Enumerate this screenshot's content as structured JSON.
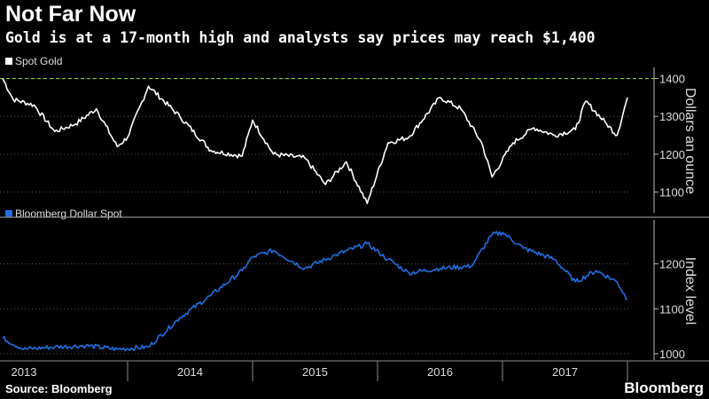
{
  "header": {
    "title": "Not Far Now",
    "subtitle": "Gold is at a 17-month high and analysts say prices may reach $1,400"
  },
  "footer": {
    "source": "Source: Bloomberg",
    "brand": "Bloomberg"
  },
  "colors": {
    "background": "#000000",
    "gold_line": "#ffffff",
    "dollar_line": "#1f6fe0",
    "reference_line": "#7fd13b",
    "grid": "#555555"
  },
  "chart_data": [
    {
      "type": "line",
      "series": [
        {
          "name": "Spot Gold",
          "x": [
            "2013-01",
            "2013-02",
            "2013-04",
            "2013-06",
            "2013-08",
            "2013-10",
            "2013-12",
            "2014-01",
            "2014-03",
            "2014-06",
            "2014-09",
            "2014-12",
            "2015-01",
            "2015-03",
            "2015-06",
            "2015-08",
            "2015-10",
            "2015-12",
            "2016-02",
            "2016-04",
            "2016-07",
            "2016-09",
            "2016-11",
            "2016-12",
            "2017-02",
            "2017-04",
            "2017-06",
            "2017-08",
            "2017-09",
            "2017-11",
            "2017-12",
            "2018-01"
          ],
          "values": [
            1400,
            1345,
            1330,
            1260,
            1280,
            1320,
            1220,
            1245,
            1380,
            1300,
            1210,
            1195,
            1290,
            1200,
            1190,
            1120,
            1180,
            1070,
            1230,
            1245,
            1350,
            1320,
            1230,
            1140,
            1230,
            1270,
            1250,
            1265,
            1340,
            1280,
            1250,
            1350
          ]
        }
      ],
      "ylabel": "Dollars an ounce",
      "ylim": [
        1050,
        1420
      ],
      "yticks": [
        "1400",
        "1300",
        "1200",
        "1100"
      ],
      "reference_line": 1400,
      "legend": "top-left"
    },
    {
      "type": "line",
      "series": [
        {
          "name": "Bloomberg Dollar Spot",
          "x": [
            "2013-01",
            "2013-03",
            "2013-06",
            "2013-09",
            "2013-12",
            "2014-03",
            "2014-06",
            "2014-09",
            "2014-12",
            "2015-01",
            "2015-03",
            "2015-06",
            "2015-09",
            "2015-12",
            "2016-02",
            "2016-04",
            "2016-07",
            "2016-10",
            "2016-12",
            "2017-01",
            "2017-03",
            "2017-06",
            "2017-08",
            "2017-10",
            "2017-12",
            "2018-01"
          ],
          "values": [
            1035,
            1010,
            1015,
            1018,
            1010,
            1015,
            1080,
            1130,
            1185,
            1215,
            1230,
            1190,
            1220,
            1245,
            1210,
            1180,
            1190,
            1195,
            1265,
            1270,
            1235,
            1210,
            1160,
            1185,
            1160,
            1120
          ]
        }
      ],
      "ylabel": "Index level",
      "ylim": [
        990,
        1290
      ],
      "yticks": [
        "1200",
        "1100",
        "1000"
      ],
      "legend": "top-left"
    }
  ],
  "x_axis": {
    "type": "date",
    "range": [
      "2013-01",
      "2018-01"
    ],
    "labels": [
      "2013",
      "2014",
      "2015",
      "2016",
      "2017"
    ]
  }
}
